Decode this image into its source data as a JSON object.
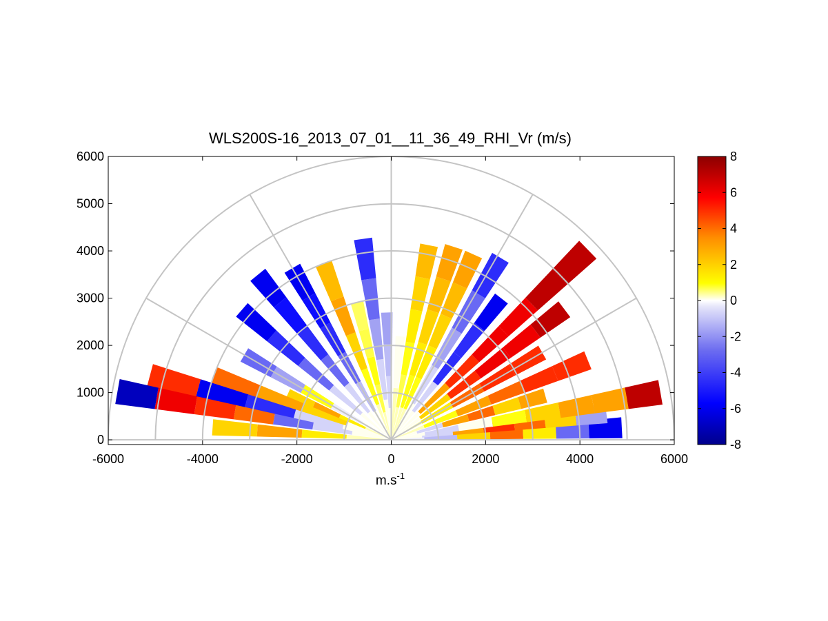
{
  "chart_data": {
    "type": "heatmap",
    "subtype": "polar RHI sector scan",
    "title": "WLS200S-16_2013_07_01__11_36_49_RHI_Vr (m/s)",
    "xlabel_base": "m.s",
    "xlabel_exponent": "-1",
    "ylabel": "",
    "xlim": [
      -6000,
      6000
    ],
    "ylim": [
      -100,
      6000
    ],
    "x_ticks": [
      -6000,
      -4000,
      -2000,
      0,
      2000,
      4000,
      6000
    ],
    "y_ticks": [
      0,
      1000,
      2000,
      3000,
      4000,
      5000,
      6000
    ],
    "range_rings": [
      1000,
      2000,
      3000,
      4000,
      5000,
      6000
    ],
    "spoke_angles_deg": [
      0,
      30,
      60,
      90,
      120,
      150,
      180
    ],
    "grid": true,
    "colorbar": {
      "label": "",
      "min": -8,
      "max": 8,
      "ticks": [
        8,
        6,
        4,
        2,
        0,
        -2,
        -4,
        -6,
        -8
      ],
      "colormap": [
        "#00008b",
        "#0000ff",
        "#8c8cf0",
        "#ffffff",
        "#ffff00",
        "#ff8c00",
        "#ff0000",
        "#8b0000"
      ]
    },
    "series": [
      {
        "elevation_deg": 3,
        "r_max": 4900,
        "vr": [
          -1.5,
          -2.5,
          2,
          4,
          1.5,
          -4,
          -6
        ]
      },
      {
        "elevation_deg": 7,
        "r_max": 4600,
        "vr": [
          -1,
          -2,
          3,
          5,
          4,
          2,
          -3
        ]
      },
      {
        "elevation_deg": 10,
        "r_max": 5800,
        "vr": [
          -1,
          -2,
          -1,
          1,
          2,
          3,
          3,
          7
        ]
      },
      {
        "elevation_deg": 16,
        "r_max": 3400,
        "vr": [
          -1,
          -2,
          3,
          4,
          2,
          3
        ]
      },
      {
        "elevation_deg": 22,
        "r_max": 4500,
        "vr": [
          -0.5,
          1,
          3,
          4,
          5,
          5
        ]
      },
      {
        "elevation_deg": 30,
        "r_max": 3700,
        "vr": [
          -0.5,
          1.5,
          4,
          5,
          5
        ]
      },
      {
        "elevation_deg": 37,
        "r_max": 4600,
        "vr": [
          -1,
          2,
          5,
          6,
          6,
          7
        ]
      },
      {
        "elevation_deg": 44,
        "r_max": 5800,
        "vr": [
          -1,
          3,
          5,
          6,
          6,
          7,
          7
        ]
      },
      {
        "elevation_deg": 52,
        "r_max": 3800,
        "vr": [
          -1,
          -2,
          -5,
          -5,
          -6
        ]
      },
      {
        "elevation_deg": 59,
        "r_max": 4500,
        "vr": [
          -1,
          -2,
          -3,
          -4,
          -5
        ]
      },
      {
        "elevation_deg": 66,
        "r_max": 4300,
        "vr": [
          -0.5,
          1,
          1.5,
          2,
          2.5,
          3
        ]
      },
      {
        "elevation_deg": 72,
        "r_max": 4300,
        "vr": [
          -0.5,
          1,
          1.5,
          2,
          2.5,
          3
        ]
      },
      {
        "elevation_deg": 79,
        "r_max": 4200,
        "vr": [
          -0.5,
          0.5,
          1,
          1.5,
          2,
          2.5
        ]
      },
      {
        "elevation_deg": 85,
        "r_max": 2200,
        "vr": [
          -0.5,
          -1
        ]
      },
      {
        "elevation_deg": 92,
        "r_max": 2700,
        "vr": [
          -1,
          -2,
          -2.5,
          -3
        ]
      },
      {
        "elevation_deg": 98,
        "r_max": 4300,
        "vr": [
          -1,
          -2,
          -3,
          -4,
          -5
        ]
      },
      {
        "elevation_deg": 104,
        "r_max": 3000,
        "vr": [
          -0.5,
          0.5,
          1,
          0.5,
          0.3
        ]
      },
      {
        "elevation_deg": 111,
        "r_max": 4000,
        "vr": [
          -0.5,
          1,
          2,
          3,
          2.5
        ]
      },
      {
        "elevation_deg": 120,
        "r_max": 4200,
        "vr": [
          -1,
          -2.5,
          -4,
          -5,
          -5.5,
          -6
        ]
      },
      {
        "elevation_deg": 129,
        "r_max": 4500,
        "vr": [
          -1,
          -2,
          -4,
          -5,
          -5.5,
          -6
        ]
      },
      {
        "elevation_deg": 139,
        "r_max": 4200,
        "vr": [
          -1,
          -2,
          -4,
          -5,
          -6
        ]
      },
      {
        "elevation_deg": 150,
        "r_max": 3600,
        "vr": [
          -1,
          -1.5,
          1,
          -3,
          -4
        ]
      },
      {
        "elevation_deg": 156,
        "r_max": 2400,
        "vr": [
          -0.5,
          1.5,
          3,
          2
        ]
      },
      {
        "elevation_deg": 160,
        "r_max": 4000,
        "vr": [
          -1,
          2,
          3,
          4
        ]
      },
      {
        "elevation_deg": 165,
        "r_max": 5300,
        "vr": [
          -1,
          -2,
          -5,
          -6,
          5
        ]
      },
      {
        "elevation_deg": 170,
        "r_max": 5900,
        "vr": [
          -1,
          -2,
          -4,
          4,
          5,
          6,
          -7
        ]
      },
      {
        "elevation_deg": 176,
        "r_max": 3800,
        "vr": [
          -0.5,
          1.5,
          3,
          2
        ]
      }
    ]
  }
}
